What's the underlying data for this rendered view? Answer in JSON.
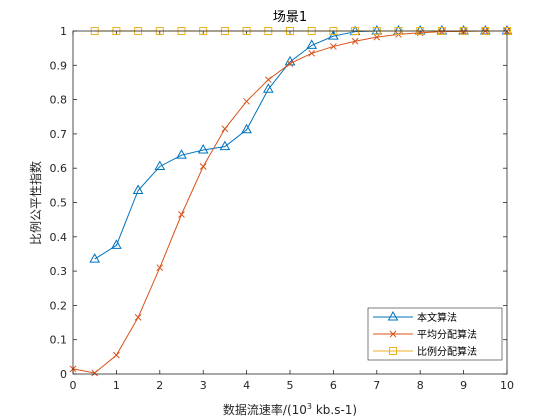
{
  "chart_data": {
    "type": "line",
    "title": "场景1",
    "xlabel_main": "数据流速率/(10",
    "xlabel_sup": "3",
    "xlabel_tail": " kb.s-1)",
    "ylabel": "比例公平性指数",
    "xlim": [
      0,
      10
    ],
    "ylim": [
      0,
      1
    ],
    "xticks": [
      0,
      1,
      2,
      3,
      4,
      5,
      6,
      7,
      8,
      9,
      10
    ],
    "yticks": [
      0,
      0.1,
      0.2,
      0.3,
      0.4,
      0.5,
      0.6,
      0.7,
      0.8,
      0.9,
      1
    ],
    "ytick_labels": [
      "0",
      "0.1",
      "0.2",
      "0.3",
      "0.4",
      "0.5",
      "0.6",
      "0.7",
      "0.8",
      "0.9",
      "1"
    ],
    "grid": false,
    "legend_position": "bottom-right",
    "series": [
      {
        "name": "本文算法",
        "color": "#0072BD",
        "marker": "triangle",
        "x": [
          0.5,
          1,
          1.5,
          2,
          2.5,
          3,
          3.5,
          4,
          4.5,
          5,
          5.5,
          6,
          6.5,
          7,
          7.5,
          8,
          8.5,
          9,
          9.5,
          10
        ],
        "values": [
          0.335,
          0.375,
          0.535,
          0.605,
          0.638,
          0.653,
          0.663,
          0.712,
          0.83,
          0.91,
          0.958,
          0.985,
          0.998,
          1,
          1,
          1,
          1,
          1,
          1,
          1
        ]
      },
      {
        "name": "平均分配算法",
        "color": "#D95319",
        "marker": "x",
        "x": [
          0,
          0.5,
          1,
          1.5,
          2,
          2.5,
          3,
          3.5,
          4,
          4.5,
          5,
          5.5,
          6,
          6.5,
          7,
          7.5,
          8,
          8.5,
          9,
          9.5,
          10
        ],
        "values": [
          0.015,
          0.003,
          0.055,
          0.165,
          0.31,
          0.465,
          0.605,
          0.715,
          0.795,
          0.858,
          0.905,
          0.935,
          0.955,
          0.97,
          0.982,
          0.99,
          0.995,
          0.998,
          0.999,
          1,
          1
        ]
      },
      {
        "name": "比例分配算法",
        "color": "#EDB120",
        "marker": "square",
        "x": [
          0.5,
          1,
          1.5,
          2,
          2.5,
          3,
          3.5,
          4,
          4.5,
          5,
          5.5,
          6,
          6.5,
          7,
          7.5,
          8,
          8.5,
          9,
          9.5,
          10
        ],
        "values": [
          1,
          1,
          1,
          1,
          1,
          1,
          1,
          1,
          1,
          1,
          1,
          1,
          1,
          1,
          1,
          1,
          1,
          1,
          1,
          1
        ]
      }
    ]
  }
}
